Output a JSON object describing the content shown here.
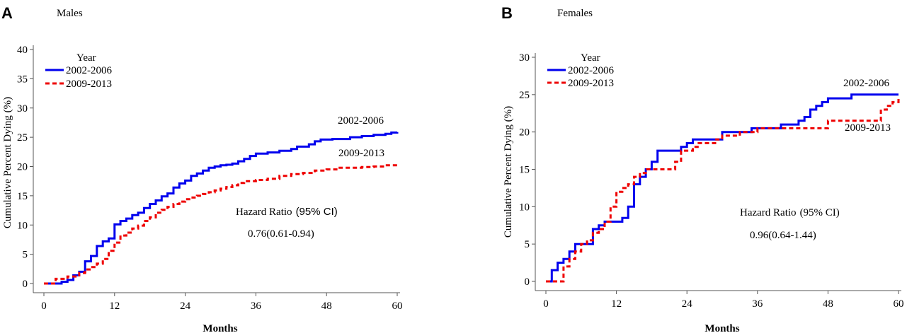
{
  "chart_data": [
    {
      "type": "line",
      "panel_letter": "A",
      "title": "Males",
      "xlabel": "Months",
      "ylabel": "Cumulative Percent Dying (%)",
      "xlim": [
        0,
        60
      ],
      "ylim": [
        0,
        40
      ],
      "xticks": [
        "0",
        "12",
        "24",
        "36",
        "48",
        "60"
      ],
      "yticks": [
        "0",
        "5",
        "10",
        "15",
        "20",
        "25",
        "30",
        "35",
        "40"
      ],
      "legend": {
        "title": "Year",
        "placement": "top-left",
        "entries": [
          "2002-2006",
          "2009-2013"
        ]
      },
      "annotations": {
        "hr_label_prefix": "Hazard Ratio",
        "hr_label_ci": "(95% CI)",
        "hr_value": "0.76(0.61-0.94)",
        "series_1_end_label": "2002-2006",
        "series_2_end_label": "2009-2013"
      },
      "series": [
        {
          "name": "2002-2006",
          "color": "#0000ee",
          "dash": "solid",
          "points": [
            [
              0,
              0
            ],
            [
              2,
              0
            ],
            [
              3,
              0.3
            ],
            [
              4,
              0.6
            ],
            [
              5,
              1.4
            ],
            [
              6,
              2
            ],
            [
              7,
              3.8
            ],
            [
              8,
              4.7
            ],
            [
              9,
              6.4
            ],
            [
              10,
              7.2
            ],
            [
              11,
              7.7
            ],
            [
              12,
              10.1
            ],
            [
              13,
              10.7
            ],
            [
              14,
              11.1
            ],
            [
              15,
              11.7
            ],
            [
              16,
              12.1
            ],
            [
              17,
              12.9
            ],
            [
              18,
              13.6
            ],
            [
              19,
              14.2
            ],
            [
              20,
              14.9
            ],
            [
              21,
              15.4
            ],
            [
              22,
              16.4
            ],
            [
              23,
              17.1
            ],
            [
              24,
              17.6
            ],
            [
              25,
              18.4
            ],
            [
              26,
              18.8
            ],
            [
              27,
              19.3
            ],
            [
              28,
              19.8
            ],
            [
              29,
              20
            ],
            [
              30,
              20.2
            ],
            [
              31,
              20.3
            ],
            [
              32,
              20.5
            ],
            [
              33,
              20.9
            ],
            [
              34,
              21.3
            ],
            [
              35,
              21.8
            ],
            [
              36,
              22.2
            ],
            [
              38,
              22.4
            ],
            [
              40,
              22.7
            ],
            [
              42,
              23
            ],
            [
              43,
              23.4
            ],
            [
              45,
              23.8
            ],
            [
              46,
              24.3
            ],
            [
              47,
              24.6
            ],
            [
              49,
              24.7
            ],
            [
              50,
              24.7
            ],
            [
              52,
              25
            ],
            [
              54,
              25.2
            ],
            [
              56,
              25.4
            ],
            [
              58,
              25.6
            ],
            [
              59,
              25.8
            ],
            [
              60,
              25.9
            ]
          ]
        },
        {
          "name": "2009-2013",
          "color": "#ee0000",
          "dash": "dashed",
          "points": [
            [
              0,
              0
            ],
            [
              2,
              0.8
            ],
            [
              4,
              1.2
            ],
            [
              6,
              1.8
            ],
            [
              7,
              2.4
            ],
            [
              8,
              2.8
            ],
            [
              9,
              3.4
            ],
            [
              10,
              4.2
            ],
            [
              11,
              5.6
            ],
            [
              12,
              7
            ],
            [
              13,
              8.2
            ],
            [
              14,
              8.7
            ],
            [
              15,
              9.4
            ],
            [
              16,
              9.9
            ],
            [
              17,
              10.7
            ],
            [
              18,
              11.3
            ],
            [
              19,
              12.1
            ],
            [
              20,
              12.6
            ],
            [
              21,
              13.1
            ],
            [
              22,
              13.6
            ],
            [
              23,
              14
            ],
            [
              24,
              14.4
            ],
            [
              25,
              14.7
            ],
            [
              26,
              15
            ],
            [
              27,
              15.3
            ],
            [
              28,
              15.6
            ],
            [
              29,
              15.9
            ],
            [
              30,
              16.2
            ],
            [
              31,
              16.5
            ],
            [
              32,
              16.8
            ],
            [
              33,
              17.2
            ],
            [
              34,
              17.5
            ],
            [
              36,
              17.7
            ],
            [
              38,
              17.9
            ],
            [
              40,
              18.4
            ],
            [
              42,
              18.7
            ],
            [
              44,
              18.9
            ],
            [
              46,
              19.3
            ],
            [
              48,
              19.5
            ],
            [
              50,
              19.8
            ],
            [
              52,
              19.8
            ],
            [
              54,
              19.9
            ],
            [
              56,
              20
            ],
            [
              58,
              20.2
            ],
            [
              60,
              20.4
            ]
          ]
        }
      ]
    },
    {
      "type": "line",
      "panel_letter": "B",
      "title": "Females",
      "xlabel": "Months",
      "ylabel": "Cumulative Percent Dying (%)",
      "xlim": [
        0,
        60
      ],
      "ylim": [
        0,
        30
      ],
      "xticks": [
        "0",
        "12",
        "24",
        "36",
        "48",
        "60"
      ],
      "yticks": [
        "0",
        "5",
        "10",
        "15",
        "20",
        "25",
        "30"
      ],
      "legend": {
        "title": "Year",
        "placement": "top-left",
        "entries": [
          "2002-2006",
          "2009-2013"
        ]
      },
      "annotations": {
        "hr_label_prefix": "Hazard Ratio",
        "hr_label_ci": "(95% CI)",
        "hr_value": "0.96(0.64-1.44)",
        "series_1_end_label": "2002-2006",
        "series_2_end_label": "2009-2013"
      },
      "series": [
        {
          "name": "2002-2006",
          "color": "#0000ee",
          "dash": "solid",
          "points": [
            [
              0,
              0
            ],
            [
              1,
              1.5
            ],
            [
              2,
              2.5
            ],
            [
              3,
              3
            ],
            [
              4,
              4
            ],
            [
              5,
              5
            ],
            [
              6,
              5
            ],
            [
              7,
              5
            ],
            [
              8,
              7
            ],
            [
              9,
              7.5
            ],
            [
              10,
              8
            ],
            [
              11,
              8
            ],
            [
              12,
              8
            ],
            [
              13,
              8.5
            ],
            [
              14,
              10
            ],
            [
              15,
              13
            ],
            [
              16,
              14
            ],
            [
              17,
              15
            ],
            [
              18,
              16
            ],
            [
              19,
              17.5
            ],
            [
              20,
              17.5
            ],
            [
              22,
              17.5
            ],
            [
              23,
              18
            ],
            [
              24,
              18.5
            ],
            [
              25,
              19
            ],
            [
              26,
              19
            ],
            [
              27,
              19
            ],
            [
              28,
              19
            ],
            [
              30,
              20
            ],
            [
              32,
              20
            ],
            [
              34,
              20
            ],
            [
              35,
              20.5
            ],
            [
              36,
              20.5
            ],
            [
              38,
              20.5
            ],
            [
              40,
              21
            ],
            [
              42,
              21
            ],
            [
              43,
              21.5
            ],
            [
              44,
              22
            ],
            [
              45,
              23
            ],
            [
              46,
              23.5
            ],
            [
              47,
              24
            ],
            [
              48,
              24.5
            ],
            [
              50,
              24.5
            ],
            [
              52,
              25
            ],
            [
              54,
              25
            ],
            [
              56,
              25
            ],
            [
              58,
              25
            ],
            [
              60,
              25
            ]
          ]
        },
        {
          "name": "2009-2013",
          "color": "#ee0000",
          "dash": "dashed",
          "points": [
            [
              0,
              0
            ],
            [
              2,
              0
            ],
            [
              3,
              2
            ],
            [
              4,
              3
            ],
            [
              5,
              4
            ],
            [
              6,
              5
            ],
            [
              7,
              5.5
            ],
            [
              8,
              6.5
            ],
            [
              9,
              7
            ],
            [
              10,
              8
            ],
            [
              11,
              10
            ],
            [
              12,
              12
            ],
            [
              13,
              12.5
            ],
            [
              14,
              13
            ],
            [
              15,
              14
            ],
            [
              16,
              14.5
            ],
            [
              17,
              15
            ],
            [
              19,
              15
            ],
            [
              21,
              15
            ],
            [
              22,
              16
            ],
            [
              23,
              17.5
            ],
            [
              24,
              17.5
            ],
            [
              25,
              18
            ],
            [
              26,
              18.5
            ],
            [
              27,
              18.5
            ],
            [
              29,
              19
            ],
            [
              30,
              19.5
            ],
            [
              31,
              19.5
            ],
            [
              33,
              20
            ],
            [
              35,
              20
            ],
            [
              36,
              20.5
            ],
            [
              38,
              20.5
            ],
            [
              40,
              20.5
            ],
            [
              42,
              20.5
            ],
            [
              44,
              20.5
            ],
            [
              46,
              20.5
            ],
            [
              48,
              21.5
            ],
            [
              50,
              21.5
            ],
            [
              52,
              21.5
            ],
            [
              54,
              21.5
            ],
            [
              56,
              21.5
            ],
            [
              57,
              23
            ],
            [
              58,
              23.5
            ],
            [
              59,
              24
            ],
            [
              60,
              24.5
            ]
          ]
        }
      ]
    }
  ]
}
